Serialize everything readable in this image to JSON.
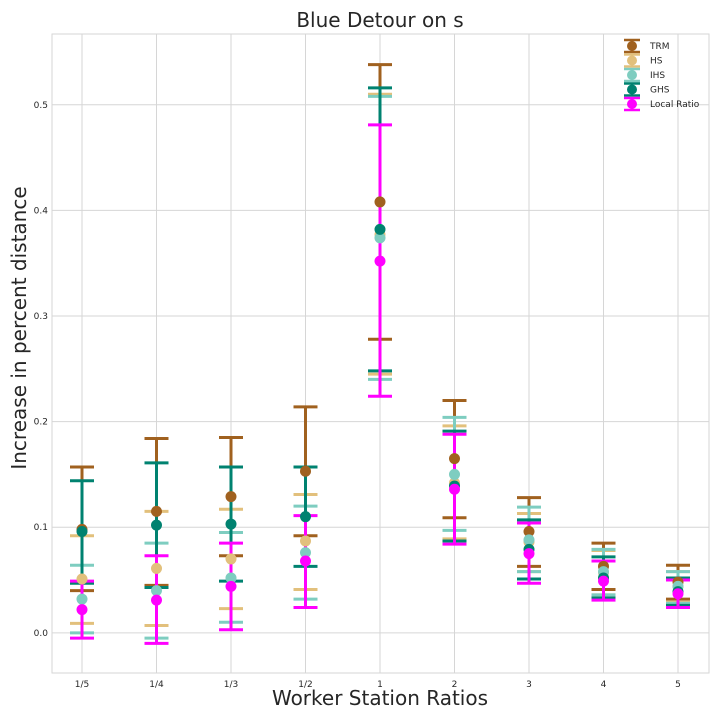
{
  "chart_data": {
    "type": "scatter",
    "title": "Blue Detour on s",
    "xlabel": "Worker Station Ratios",
    "ylabel": "Increase in percent distance",
    "categories": [
      "1/5",
      "1/4",
      "1/3",
      "1/2",
      "1",
      "2",
      "3",
      "4",
      "5"
    ],
    "ylim": [
      -0.038,
      0.567
    ],
    "yticks": [
      0.0,
      0.1,
      0.2,
      0.3,
      0.4,
      0.5
    ],
    "ytick_labels": [
      "0.0",
      "0.1",
      "0.2",
      "0.3",
      "0.4",
      "0.5"
    ],
    "grid": true,
    "legend_position": "top-right",
    "series": [
      {
        "name": "TRM",
        "color": "#A0611F",
        "values": [
          0.098,
          0.115,
          0.129,
          0.153,
          0.408,
          0.165,
          0.096,
          0.063,
          0.048
        ],
        "lower": [
          0.04,
          0.045,
          0.073,
          0.092,
          0.278,
          0.109,
          0.063,
          0.041,
          0.032
        ],
        "upper": [
          0.157,
          0.184,
          0.185,
          0.214,
          0.538,
          0.22,
          0.128,
          0.085,
          0.064
        ]
      },
      {
        "name": "HS",
        "color": "#E2C07C",
        "values": [
          0.051,
          0.061,
          0.07,
          0.087,
          0.377,
          0.142,
          0.086,
          0.057,
          0.044
        ],
        "lower": [
          0.009,
          0.007,
          0.023,
          0.041,
          0.245,
          0.089,
          0.058,
          0.036,
          0.029
        ],
        "upper": [
          0.092,
          0.115,
          0.117,
          0.131,
          0.51,
          0.196,
          0.113,
          0.078,
          0.058
        ]
      },
      {
        "name": "IHS",
        "color": "#7ECDC0",
        "values": [
          0.032,
          0.04,
          0.052,
          0.076,
          0.374,
          0.15,
          0.088,
          0.058,
          0.044
        ],
        "lower": [
          0.0,
          -0.005,
          0.01,
          0.032,
          0.24,
          0.097,
          0.058,
          0.036,
          0.028
        ],
        "upper": [
          0.064,
          0.085,
          0.095,
          0.12,
          0.508,
          0.204,
          0.119,
          0.079,
          0.058
        ]
      },
      {
        "name": "GHS",
        "color": "#008270",
        "values": [
          0.096,
          0.102,
          0.103,
          0.11,
          0.382,
          0.139,
          0.079,
          0.052,
          0.039
        ],
        "lower": [
          0.047,
          0.043,
          0.049,
          0.063,
          0.248,
          0.087,
          0.051,
          0.033,
          0.026
        ],
        "upper": [
          0.144,
          0.161,
          0.157,
          0.157,
          0.516,
          0.191,
          0.107,
          0.072,
          0.052
        ]
      },
      {
        "name": "Local Ratio",
        "color": "#FF00FF",
        "values": [
          0.022,
          0.031,
          0.044,
          0.068,
          0.352,
          0.136,
          0.075,
          0.049,
          0.037
        ],
        "lower": [
          -0.005,
          -0.01,
          0.003,
          0.024,
          0.224,
          0.084,
          0.047,
          0.031,
          0.024
        ],
        "upper": [
          0.049,
          0.073,
          0.085,
          0.111,
          0.481,
          0.188,
          0.104,
          0.068,
          0.05
        ]
      }
    ]
  }
}
